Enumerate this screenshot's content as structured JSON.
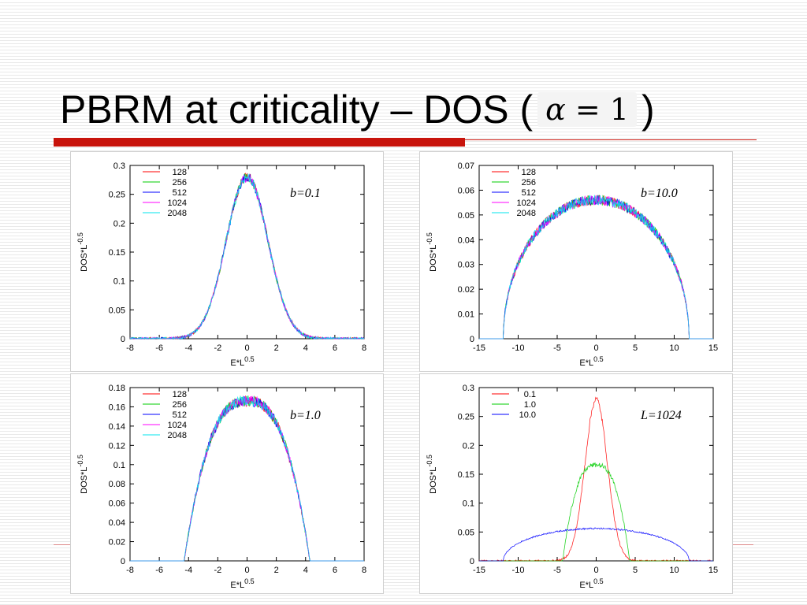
{
  "slide": {
    "title_prefix": "PBRM at criticality – DOS (",
    "title_suffix": ")",
    "formula_alpha": "α",
    "formula_rest": "= 1",
    "accent_color": "#c8140c"
  },
  "chart_data": [
    {
      "type": "line",
      "annotation": "b=0.1",
      "xlabel": "E*L",
      "xlabel_sup": "0.5",
      "ylabel": "DOS*L",
      "ylabel_sup": "-0.5",
      "xlim": [
        -8,
        8
      ],
      "ylim": [
        0,
        0.3
      ],
      "xticks": [
        "-8",
        "-6",
        "-4",
        "-2",
        "0",
        "2",
        "4",
        "6",
        "8"
      ],
      "yticks": [
        "0",
        "0.05",
        "0.1",
        "0.15",
        "0.2",
        "0.25",
        "0.3"
      ],
      "legend_position": "top-left",
      "shape": {
        "kind": "gaussian",
        "peak": 0.28,
        "sigma": 1.43,
        "noise": 0.006
      },
      "series": [
        {
          "name": "128",
          "color": "#ff0000"
        },
        {
          "name": "256",
          "color": "#00cc00"
        },
        {
          "name": "512",
          "color": "#0000ff"
        },
        {
          "name": "1024",
          "color": "#ff00ff"
        },
        {
          "name": "2048",
          "color": "#00e5ee"
        }
      ]
    },
    {
      "type": "line",
      "annotation": "b=10.0",
      "xlabel": "E*L",
      "xlabel_sup": "0.5",
      "ylabel": "DOS*L",
      "ylabel_sup": "-0.5",
      "xlim": [
        -15,
        15
      ],
      "ylim": [
        0,
        0.07
      ],
      "xticks": [
        "-15",
        "-10",
        "-5",
        "0",
        "5",
        "10",
        "15"
      ],
      "yticks": [
        "0",
        "0.01",
        "0.02",
        "0.03",
        "0.04",
        "0.05",
        "0.06",
        "0.07"
      ],
      "legend_position": "top-left",
      "shape": {
        "kind": "semicircle",
        "peak": 0.056,
        "radius": 11.9,
        "noise": 0.0015
      },
      "series": [
        {
          "name": "128",
          "color": "#ff0000"
        },
        {
          "name": "256",
          "color": "#00cc00"
        },
        {
          "name": "512",
          "color": "#0000ff"
        },
        {
          "name": "1024",
          "color": "#ff00ff"
        },
        {
          "name": "2048",
          "color": "#00e5ee"
        }
      ]
    },
    {
      "type": "line",
      "annotation": "b=1.0",
      "xlabel": "E*L",
      "xlabel_sup": "0.5",
      "ylabel": "DOS*L",
      "ylabel_sup": "-0.5",
      "xlim": [
        -8,
        8
      ],
      "ylim": [
        0,
        0.18
      ],
      "xticks": [
        "-8",
        "-6",
        "-4",
        "-2",
        "0",
        "2",
        "4",
        "6",
        "8"
      ],
      "yticks": [
        "0",
        "0.02",
        "0.04",
        "0.06",
        "0.08",
        "0.1",
        "0.12",
        "0.14",
        "0.16",
        "0.18"
      ],
      "legend_position": "top-left",
      "shape": {
        "kind": "rounded",
        "peak": 0.166,
        "width": 4.3,
        "power": 2.6,
        "noise": 0.004
      },
      "series": [
        {
          "name": "128",
          "color": "#ff0000"
        },
        {
          "name": "256",
          "color": "#00cc00"
        },
        {
          "name": "512",
          "color": "#0000ff"
        },
        {
          "name": "1024",
          "color": "#ff00ff"
        },
        {
          "name": "2048",
          "color": "#00e5ee"
        }
      ]
    },
    {
      "type": "line",
      "annotation": "L=1024",
      "xlabel": "E*L",
      "xlabel_sup": "0.5",
      "ylabel": "DOS*L",
      "ylabel_sup": "-0.5",
      "xlim": [
        -15,
        15
      ],
      "ylim": [
        0,
        0.3
      ],
      "xticks": [
        "-15",
        "-10",
        "-5",
        "0",
        "5",
        "10",
        "15"
      ],
      "yticks": [
        "0",
        "0.05",
        "0.1",
        "0.15",
        "0.2",
        "0.25",
        "0.3"
      ],
      "legend_position": "top-left",
      "series": [
        {
          "name": "0.1",
          "color": "#ff0000",
          "shape": {
            "kind": "gaussian",
            "peak": 0.28,
            "sigma": 1.43,
            "noise": 0.004
          }
        },
        {
          "name": "1.0",
          "color": "#00cc00",
          "shape": {
            "kind": "rounded",
            "peak": 0.166,
            "width": 4.3,
            "power": 2.6,
            "noise": 0.003
          }
        },
        {
          "name": "10.0",
          "color": "#0000ff",
          "shape": {
            "kind": "semicircle",
            "peak": 0.056,
            "radius": 11.9,
            "noise": 0.001
          }
        }
      ]
    }
  ]
}
